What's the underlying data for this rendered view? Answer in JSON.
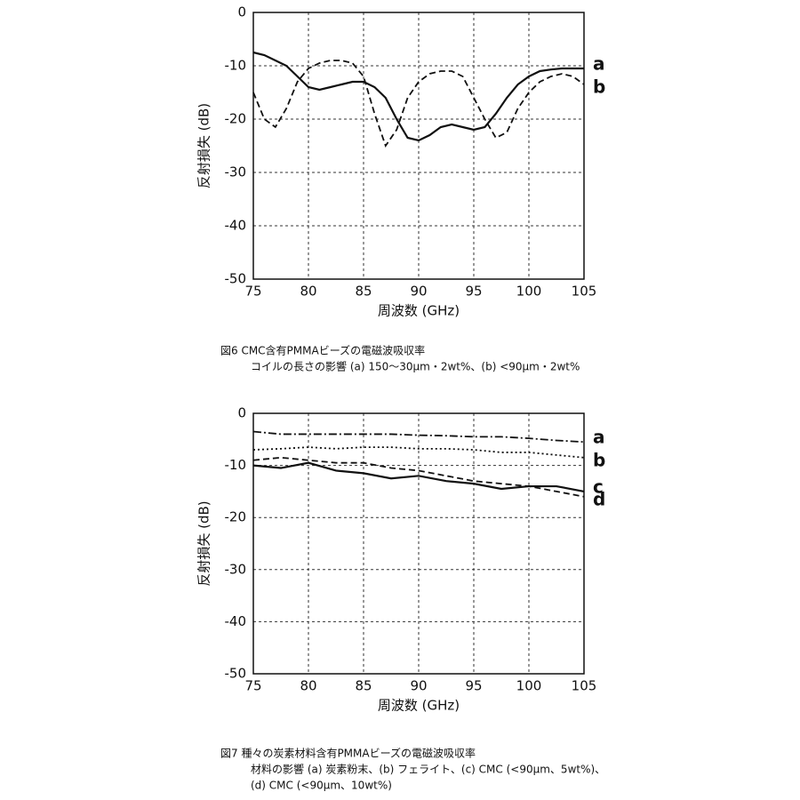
{
  "chart_data": [
    {
      "type": "line",
      "x_label": "周波数 (GHz)",
      "y_label": "反射損失 (dB)",
      "caption": [
        "図6 CMC含有PMMAビーズの電磁波吸収率",
        "コイルの長さの影響 (a) 150～30μm・2wt%、(b) <90μm・2wt%"
      ],
      "x": [
        75,
        76,
        77,
        78,
        79,
        80,
        81,
        82,
        83,
        84,
        85,
        86,
        87,
        88,
        89,
        90,
        91,
        92,
        93,
        94,
        95,
        96,
        97,
        98,
        99,
        100,
        101,
        102,
        103,
        104,
        105
      ],
      "series": [
        {
          "name": "a",
          "color": "#111111",
          "style": "solid",
          "values": [
            -7.5,
            -8,
            -9,
            -10,
            -12,
            -14,
            -14.5,
            -14,
            -13.5,
            -13,
            -13,
            -14,
            -16,
            -20,
            -23.5,
            -24,
            -23,
            -21.5,
            -21,
            -21.5,
            -22,
            -21.5,
            -19,
            -16,
            -13.5,
            -12,
            -11,
            -10.7,
            -10.5,
            -10.5,
            -10.5
          ]
        },
        {
          "name": "b",
          "color": "#111111",
          "style": "dashed",
          "values": [
            -15,
            -20,
            -21.5,
            -18,
            -13,
            -10.5,
            -9.5,
            -9,
            -9,
            -9.5,
            -12,
            -19,
            -25,
            -22,
            -16,
            -13,
            -11.5,
            -11,
            -11,
            -12,
            -16,
            -20,
            -23.5,
            -22.5,
            -18,
            -15,
            -13,
            -12,
            -11.5,
            -12,
            -13.5
          ]
        }
      ],
      "xlim": [
        75,
        105
      ],
      "xticks": [
        75,
        80,
        85,
        90,
        95,
        100,
        105
      ],
      "ylim": [
        -50,
        0
      ],
      "yticks": [
        0,
        -10,
        -20,
        -30,
        -40,
        -50
      ],
      "grid": true
    },
    {
      "type": "line",
      "x_label": "周波数 (GHz)",
      "y_label": "反射損失 (dB)",
      "caption": [
        "図7 種々の炭素材料含有PMMAビーズの電磁波吸収率",
        "材料の影響 (a) 炭素粉末、(b) フェライト、(c) CMC (<90μm、5wt%)、",
        "(d) CMC (<90μm、10wt%)"
      ],
      "x": [
        75,
        77.5,
        80,
        82.5,
        85,
        87.5,
        90,
        92.5,
        95,
        97.5,
        100,
        102.5,
        105
      ],
      "series": [
        {
          "name": "a",
          "color": "#111111",
          "style": "dashdot",
          "values": [
            -3.5,
            -4,
            -4,
            -4,
            -4,
            -4,
            -4.2,
            -4.3,
            -4.5,
            -4.5,
            -4.8,
            -5.2,
            -5.5
          ]
        },
        {
          "name": "b",
          "color": "#111111",
          "style": "dotted",
          "values": [
            -7,
            -6.8,
            -6.5,
            -6.8,
            -6.5,
            -6.5,
            -6.8,
            -6.8,
            -7,
            -7.5,
            -7.5,
            -8,
            -8.5
          ]
        },
        {
          "name": "c",
          "color": "#111111",
          "style": "solid",
          "values": [
            -10,
            -10.5,
            -9.5,
            -11,
            -11.5,
            -12.5,
            -12,
            -13,
            -13.5,
            -14.5,
            -14,
            -14,
            -15
          ]
        },
        {
          "name": "d",
          "color": "#111111",
          "style": "dashed",
          "values": [
            -9,
            -8.5,
            -9,
            -9.5,
            -9.5,
            -10.5,
            -11,
            -12,
            -13,
            -13.5,
            -14,
            -15,
            -16
          ]
        }
      ],
      "xlim": [
        75,
        105
      ],
      "xticks": [
        75,
        80,
        85,
        90,
        95,
        100,
        105
      ],
      "ylim": [
        -50,
        0
      ],
      "yticks": [
        0,
        -10,
        -20,
        -30,
        -40,
        -50
      ],
      "grid": true
    }
  ]
}
